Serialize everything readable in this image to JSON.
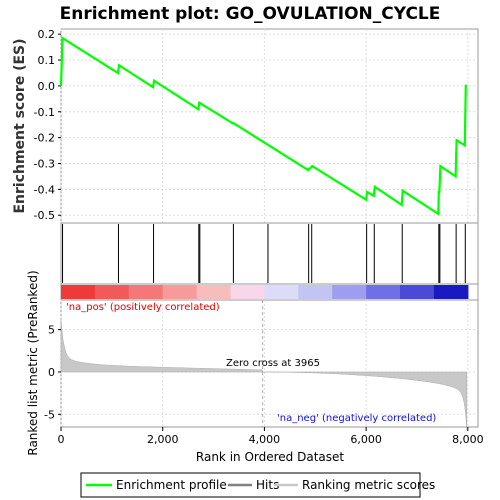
{
  "chart_data": {
    "type": "line",
    "title": "Enrichment plot: GO_OVULATION_CYCLE",
    "es_ylabel": "Enrichment score (ES)",
    "metric_ylabel": "Ranked list metric (PreRanked)",
    "xlabel": "Rank in Ordered Dataset",
    "xlim": [
      0,
      8200
    ],
    "es_ylim": [
      -0.53,
      0.22
    ],
    "metric_ylim": [
      -6.5,
      8.5
    ],
    "x_ticks": [
      0,
      2000,
      4000,
      6000,
      8000
    ],
    "x_tick_labels": [
      "0",
      "2,000",
      "4,000",
      "6,000",
      "8,000"
    ],
    "es_ticks": [
      0.2,
      0.1,
      0.0,
      -0.1,
      -0.2,
      -0.3,
      -0.4,
      -0.5
    ],
    "es_tick_labels": [
      "0.2",
      "0.1",
      "0.0",
      "-0.1",
      "-0.2",
      "-0.3",
      "-0.4",
      "-0.5"
    ],
    "metric_ticks": [
      5,
      0,
      -5
    ],
    "metric_tick_labels": [
      "5",
      "0",
      "-5"
    ],
    "grid": true,
    "series": [
      {
        "name": "Enrichment profile",
        "color": "#00ff00",
        "x": [
          0,
          30,
          1120,
          1140,
          1810,
          1830,
          2700,
          2720,
          3380,
          3400,
          4860,
          4880,
          4920,
          4940,
          6000,
          6020,
          6150,
          6170,
          6700,
          6720,
          7420,
          7430,
          7440,
          7460,
          7760,
          7780,
          7940,
          7960
        ],
        "y": [
          0.0,
          0.185,
          0.05,
          0.08,
          -0.005,
          0.02,
          -0.09,
          -0.065,
          -0.145,
          -0.145,
          -0.325,
          -0.32,
          -0.315,
          -0.31,
          -0.44,
          -0.41,
          -0.425,
          -0.39,
          -0.46,
          -0.405,
          -0.495,
          -0.41,
          -0.41,
          -0.31,
          -0.35,
          -0.21,
          -0.23,
          0.005
        ]
      }
    ],
    "hits": [
      30,
      1130,
      1820,
      2710,
      2730,
      3390,
      4070,
      4870,
      4930,
      6010,
      6160,
      6710,
      7430,
      7450,
      7770,
      7950
    ],
    "heatmap_colors": [
      "#f03a3a",
      "#f25a5a",
      "#f47878",
      "#f69a9a",
      "#f7bcbc",
      "#fad6ea",
      "#dcdcf8",
      "#c4c4f2",
      "#9e9ef0",
      "#7070e6",
      "#4a4ad8",
      "#1a1ac2"
    ],
    "zero_cross": 3965,
    "annotations": {
      "pos": "'na_pos' (positively correlated)",
      "neg": "'na_neg' (negatively correlated)",
      "zero": "Zero cross at 3965"
    },
    "legend": [
      "Enrichment profile",
      "Hits",
      "Ranking metric scores"
    ],
    "legend_colors": [
      "#00ff00",
      "#808080",
      "#c8c8c8"
    ]
  }
}
